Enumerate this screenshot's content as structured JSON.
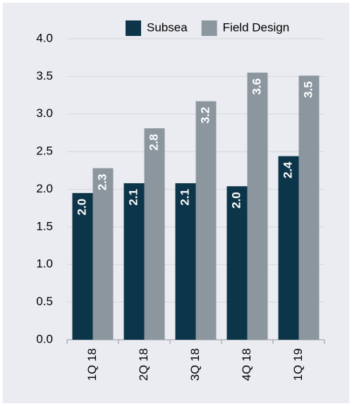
{
  "chart_data": {
    "type": "bar",
    "categories": [
      "1Q 18",
      "2Q 18",
      "3Q 18",
      "4Q 18",
      "1Q 19"
    ],
    "series": [
      {
        "name": "Subsea",
        "color": "#0d3549",
        "values": [
          1.95,
          2.08,
          2.08,
          2.04,
          2.44
        ],
        "value_labels": [
          "2.0",
          "2.1",
          "2.1",
          "2.0",
          "2.4"
        ]
      },
      {
        "name": "Field Design",
        "color": "#8c969f",
        "values": [
          2.28,
          2.81,
          3.17,
          3.55,
          3.51
        ],
        "value_labels": [
          "2.3",
          "2.8",
          "3.2",
          "3.6",
          "3.5"
        ]
      }
    ],
    "ylim": [
      0,
      4
    ],
    "yticks": [
      {
        "value": 0,
        "label": "0.0"
      },
      {
        "value": 0.5,
        "label": "0.5"
      },
      {
        "value": 1,
        "label": "1.0"
      },
      {
        "value": 1.5,
        "label": "1.5"
      },
      {
        "value": 2,
        "label": "2.0"
      },
      {
        "value": 2.5,
        "label": "2.5"
      },
      {
        "value": 3,
        "label": "3.0"
      },
      {
        "value": 3.5,
        "label": "3.5"
      },
      {
        "value": 4,
        "label": "4.0"
      }
    ],
    "grid": true,
    "legend": "top"
  }
}
